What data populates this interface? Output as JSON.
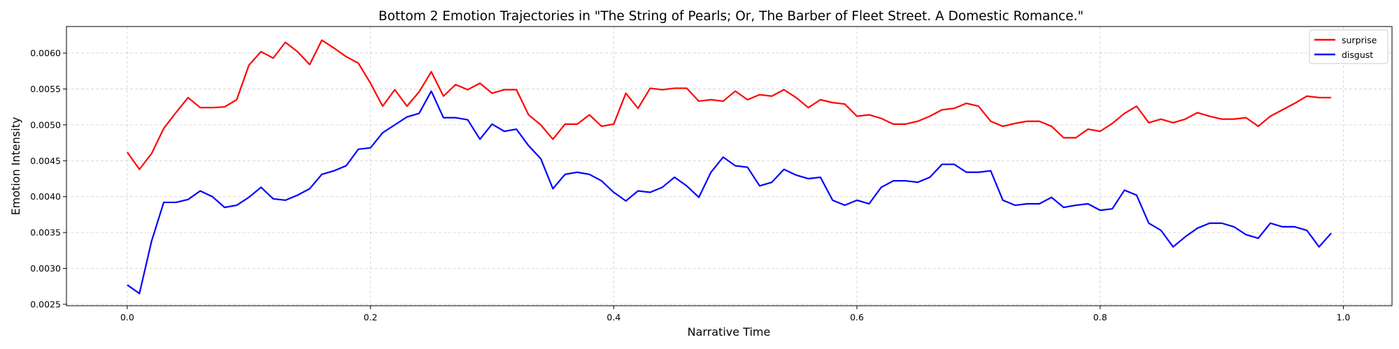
{
  "chart_data": {
    "type": "line",
    "title": "Bottom 2 Emotion Trajectories in \"The String of Pearls; Or, The Barber of Fleet Street. A Domestic Romance.\"",
    "xlabel": "Narrative Time",
    "ylabel": "Emotion Intensity",
    "xlim": [
      -0.05,
      1.04
    ],
    "ylim": [
      0.00248,
      0.00637
    ],
    "x_ticks": [
      0.0,
      0.2,
      0.4,
      0.6,
      0.8,
      1.0
    ],
    "x_tick_labels": [
      "0.0",
      "0.2",
      "0.4",
      "0.6",
      "0.8",
      "1.0"
    ],
    "y_ticks": [
      0.0025,
      0.003,
      0.0035,
      0.004,
      0.0045,
      0.005,
      0.0055,
      0.006
    ],
    "y_tick_labels": [
      "0.0025",
      "0.0030",
      "0.0035",
      "0.0040",
      "0.0045",
      "0.0050",
      "0.0055",
      "0.0060"
    ],
    "grid": true,
    "legend_position": "top-right",
    "x": [
      0.0,
      0.01,
      0.02,
      0.03,
      0.04,
      0.05,
      0.06,
      0.07,
      0.08,
      0.09,
      0.1,
      0.11,
      0.12,
      0.13,
      0.14,
      0.15,
      0.16,
      0.17,
      0.18,
      0.19,
      0.2,
      0.21,
      0.22,
      0.23,
      0.24,
      0.25,
      0.26,
      0.27,
      0.28,
      0.29,
      0.3,
      0.31,
      0.32,
      0.33,
      0.34,
      0.35,
      0.36,
      0.37,
      0.38,
      0.39,
      0.4,
      0.41,
      0.42,
      0.43,
      0.44,
      0.45,
      0.46,
      0.47,
      0.48,
      0.49,
      0.5,
      0.51,
      0.52,
      0.53,
      0.54,
      0.55,
      0.56,
      0.57,
      0.58,
      0.59,
      0.6,
      0.61,
      0.62,
      0.63,
      0.64,
      0.65,
      0.66,
      0.67,
      0.68,
      0.69,
      0.7,
      0.71,
      0.72,
      0.73,
      0.74,
      0.75,
      0.76,
      0.77,
      0.78,
      0.79,
      0.8,
      0.81,
      0.82,
      0.83,
      0.84,
      0.85,
      0.86,
      0.87,
      0.88,
      0.89,
      0.9,
      0.91,
      0.92,
      0.93,
      0.94,
      0.95,
      0.96,
      0.97,
      0.98,
      0.99
    ],
    "series": [
      {
        "name": "surprise",
        "color": "#ff0000",
        "values": [
          0.00462,
          0.00438,
          0.0046,
          0.00495,
          0.00517,
          0.00538,
          0.00524,
          0.00524,
          0.00525,
          0.00535,
          0.00583,
          0.00602,
          0.00593,
          0.00615,
          0.00602,
          0.00584,
          0.00618,
          0.00607,
          0.00595,
          0.00586,
          0.00558,
          0.00526,
          0.00549,
          0.00526,
          0.00546,
          0.00574,
          0.0054,
          0.00556,
          0.00549,
          0.00558,
          0.00544,
          0.00549,
          0.00549,
          0.00514,
          0.005,
          0.0048,
          0.00501,
          0.00501,
          0.00514,
          0.00498,
          0.00501,
          0.00544,
          0.00523,
          0.00551,
          0.00549,
          0.00551,
          0.00551,
          0.00533,
          0.00535,
          0.00533,
          0.00547,
          0.00535,
          0.00542,
          0.0054,
          0.00549,
          0.00538,
          0.00524,
          0.00535,
          0.00531,
          0.00529,
          0.00512,
          0.00514,
          0.00509,
          0.00501,
          0.00501,
          0.00505,
          0.00512,
          0.00521,
          0.00523,
          0.0053,
          0.00526,
          0.00505,
          0.00498,
          0.00502,
          0.00505,
          0.00505,
          0.00498,
          0.00482,
          0.00482,
          0.00494,
          0.00491,
          0.00502,
          0.00516,
          0.00526,
          0.00503,
          0.00508,
          0.00503,
          0.00508,
          0.00517,
          0.00512,
          0.00508,
          0.00508,
          0.0051,
          0.00498,
          0.00512,
          0.00521,
          0.0053,
          0.0054,
          0.00538,
          0.00538
        ]
      },
      {
        "name": "disgust",
        "color": "#0000ff",
        "values": [
          0.00277,
          0.00265,
          0.00338,
          0.00392,
          0.00392,
          0.00396,
          0.00408,
          0.004,
          0.00385,
          0.00388,
          0.00399,
          0.00413,
          0.00397,
          0.00395,
          0.00402,
          0.00411,
          0.00431,
          0.00436,
          0.00443,
          0.00466,
          0.00468,
          0.00489,
          0.005,
          0.00511,
          0.00516,
          0.00547,
          0.0051,
          0.0051,
          0.00507,
          0.0048,
          0.00501,
          0.00491,
          0.00494,
          0.00471,
          0.00453,
          0.00411,
          0.00431,
          0.00434,
          0.00431,
          0.00422,
          0.00406,
          0.00394,
          0.00408,
          0.00406,
          0.00413,
          0.00427,
          0.00415,
          0.00399,
          0.00434,
          0.00455,
          0.00443,
          0.00441,
          0.00415,
          0.0042,
          0.00438,
          0.0043,
          0.00425,
          0.00427,
          0.00395,
          0.00388,
          0.00395,
          0.0039,
          0.00413,
          0.00422,
          0.00422,
          0.0042,
          0.00427,
          0.00445,
          0.00445,
          0.00434,
          0.00434,
          0.00436,
          0.00395,
          0.00388,
          0.0039,
          0.0039,
          0.00399,
          0.00385,
          0.00388,
          0.0039,
          0.00381,
          0.00383,
          0.00409,
          0.00402,
          0.00363,
          0.00353,
          0.0033,
          0.00344,
          0.00356,
          0.00363,
          0.00363,
          0.00358,
          0.00347,
          0.00342,
          0.00363,
          0.00358,
          0.00358,
          0.00353,
          0.0033,
          0.00349
        ]
      }
    ]
  }
}
